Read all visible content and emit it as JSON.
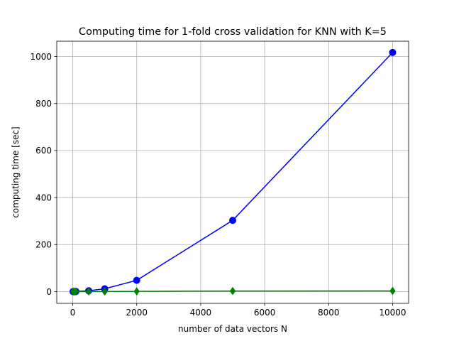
{
  "chart_data": {
    "type": "line",
    "title": "Computing time for 1-fold cross validation for KNN with K=5",
    "xlabel": "number of data vectors N",
    "ylabel": "computing time [sec]",
    "xlim": [
      -500,
      10500
    ],
    "ylim": [
      -50,
      1065
    ],
    "xticks": [
      0,
      2000,
      4000,
      6000,
      8000,
      10000
    ],
    "yticks": [
      0,
      200,
      400,
      600,
      800,
      1000
    ],
    "grid": true,
    "legend": "none",
    "series": [
      {
        "color": "#0000ff",
        "marker": "circle",
        "x": [
          10,
          50,
          100,
          500,
          1000,
          2000,
          5000,
          10000
        ],
        "y": [
          0.1,
          0.3,
          0.6,
          3.5,
          12,
          48,
          303,
          1017
        ]
      },
      {
        "color": "#008000",
        "marker": "diamond",
        "x": [
          10,
          50,
          100,
          500,
          1000,
          2000,
          5000,
          10000
        ],
        "y": [
          0.01,
          0.02,
          0.05,
          0.2,
          0.4,
          0.9,
          2.5,
          3.0
        ]
      }
    ]
  }
}
